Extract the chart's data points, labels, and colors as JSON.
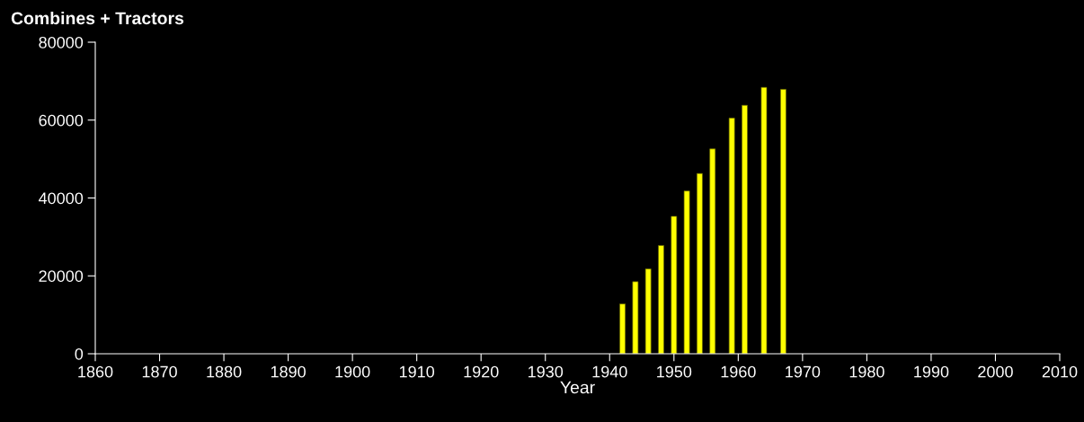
{
  "chart_data": {
    "type": "bar",
    "title": "Combines + Tractors",
    "xlabel": "Year",
    "x": [
      1942,
      1944,
      1946,
      1948,
      1950,
      1952,
      1954,
      1956,
      1959,
      1961,
      1964,
      1967
    ],
    "values": [
      12800,
      18500,
      21800,
      27800,
      35300,
      41800,
      46300,
      52600,
      60500,
      63800,
      68400,
      67900
    ],
    "color": "#ffff00",
    "xlim": [
      1860,
      2010
    ],
    "xticks": [
      1860,
      1870,
      1880,
      1890,
      1900,
      1910,
      1920,
      1930,
      1940,
      1950,
      1960,
      1970,
      1980,
      1990,
      2000,
      2010
    ],
    "ylim": [
      0,
      80000
    ],
    "yticks": [
      0,
      20000,
      40000,
      60000,
      80000
    ],
    "grid": false,
    "legend": false
  }
}
